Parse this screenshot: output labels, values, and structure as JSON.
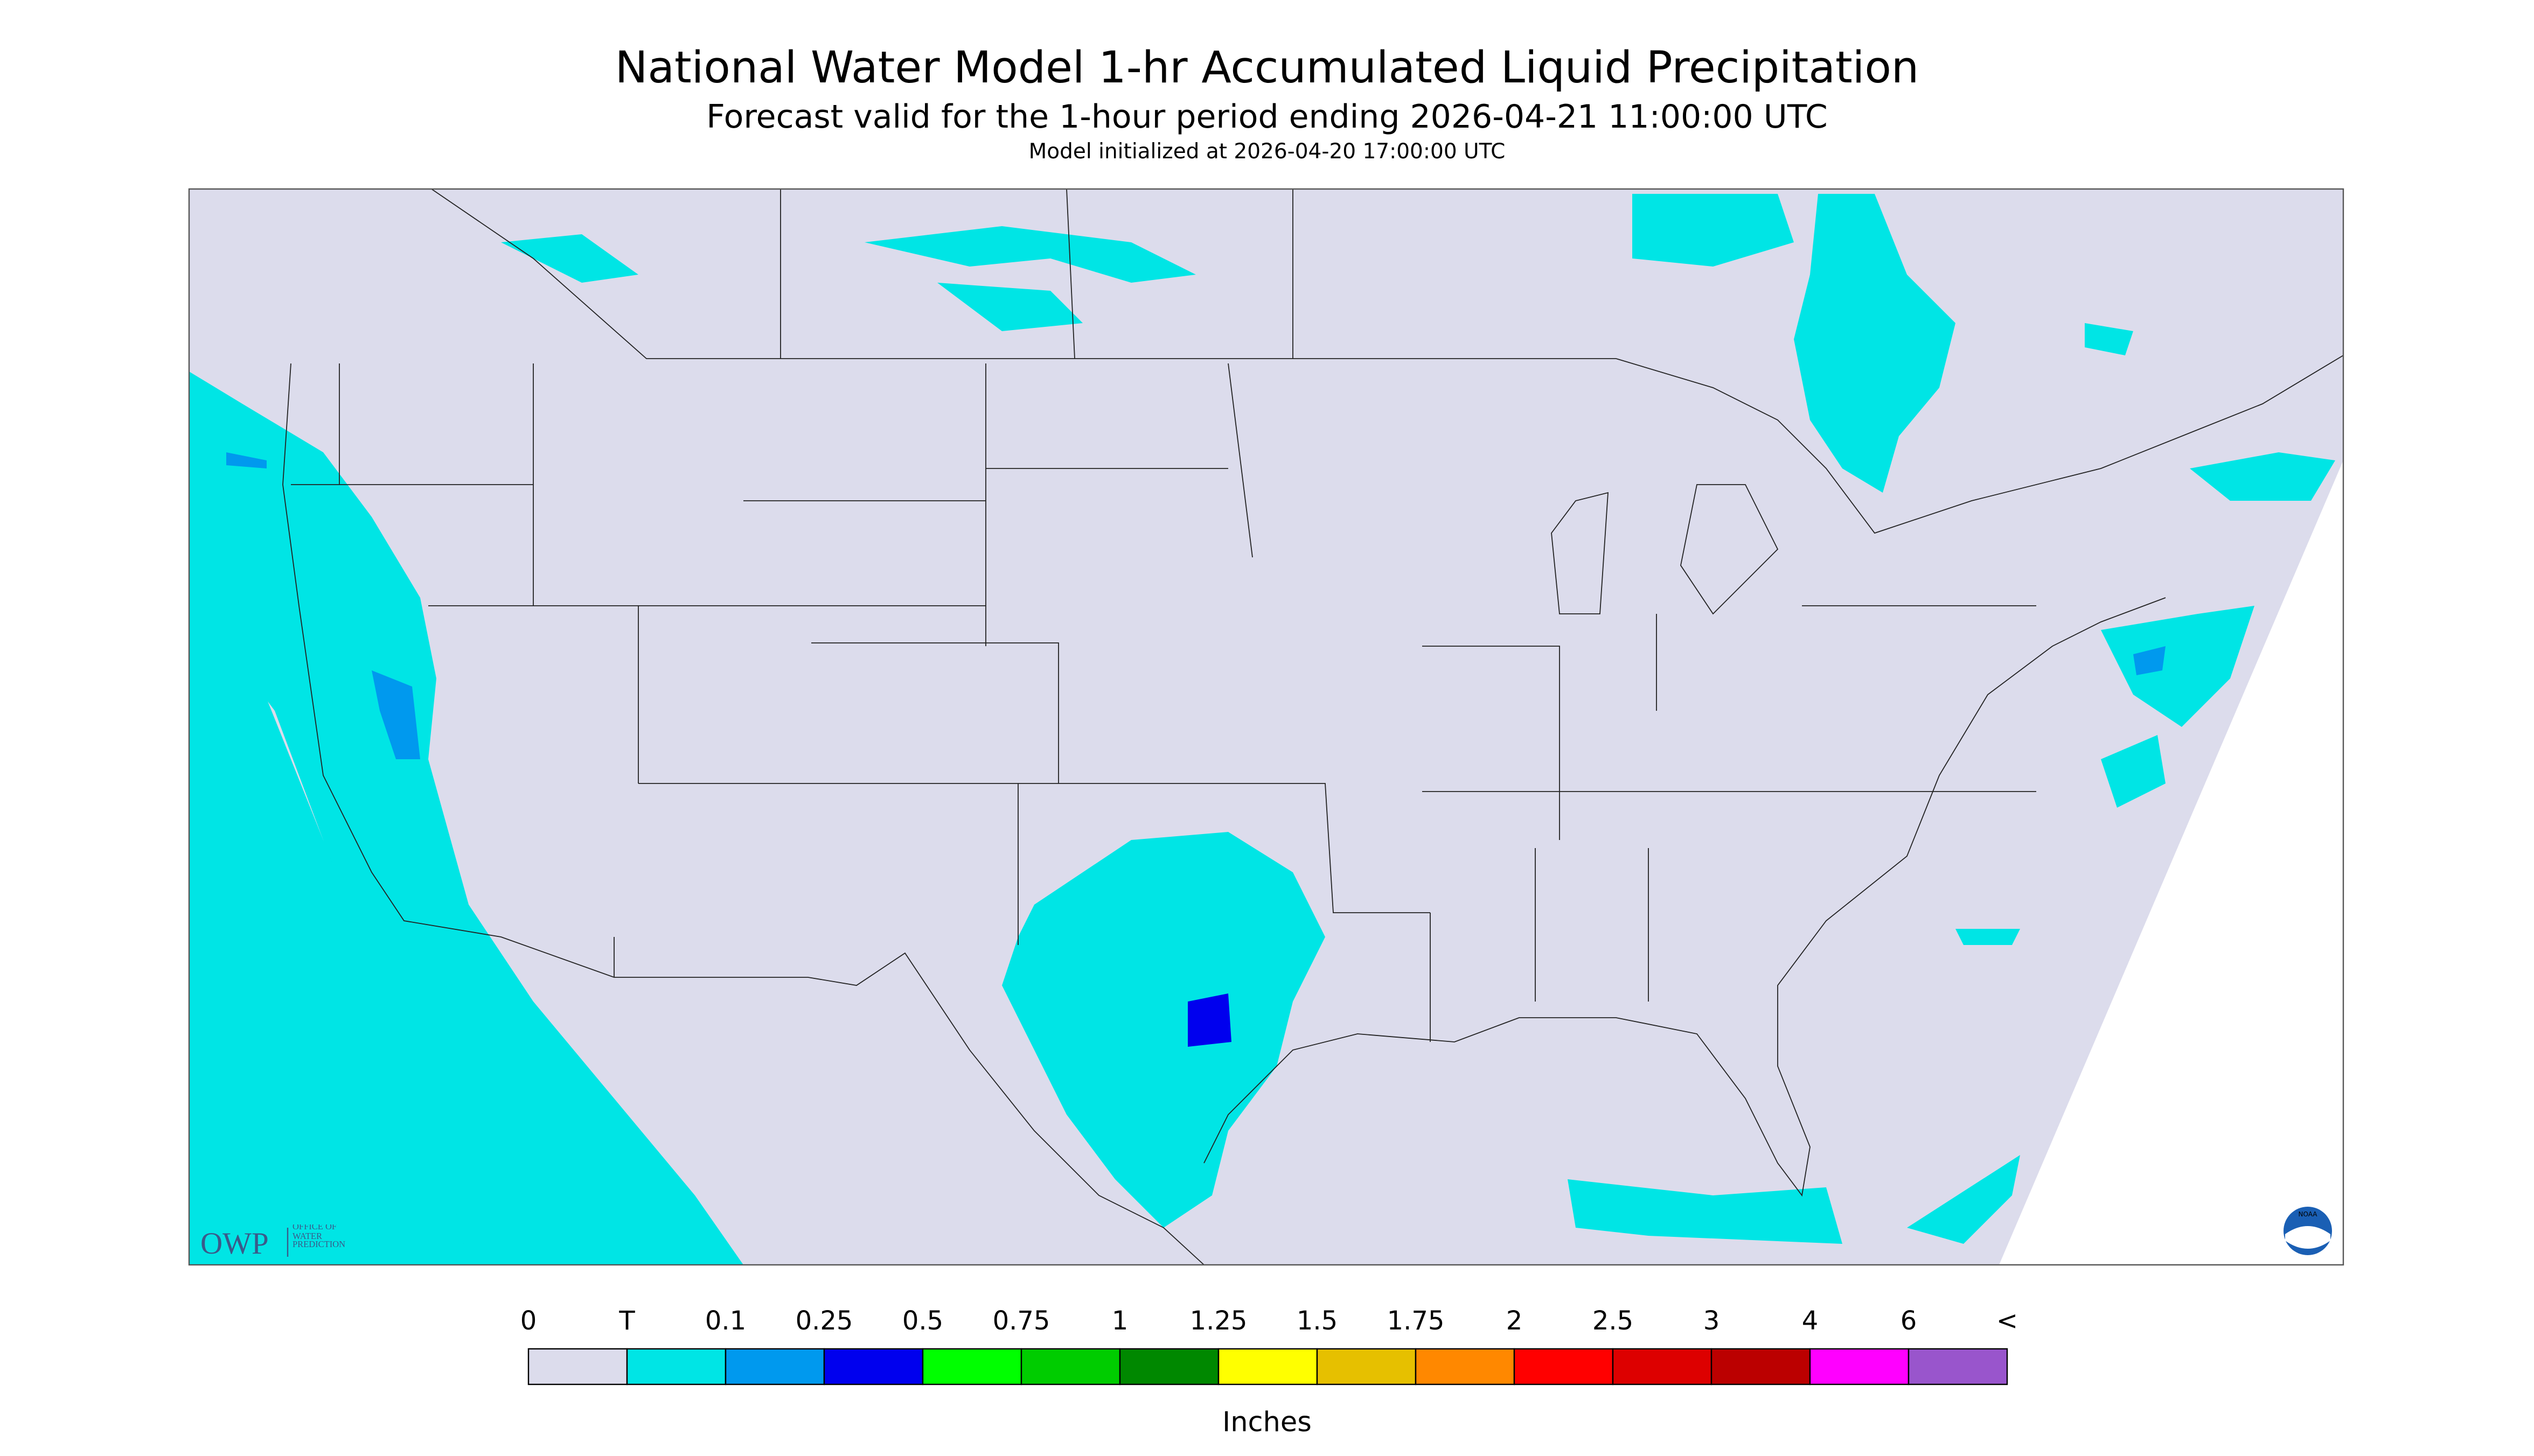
{
  "header": {
    "title": "National Water Model 1-hr Accumulated Liquid Precipitation",
    "subtitle": "Forecast valid for the 1-hour period ending 2026-04-21 11:00:00 UTC",
    "init": "Model initialized at 2026-04-20 17:00:00 UTC"
  },
  "legend": {
    "labels": [
      "0",
      "T",
      "0.1",
      "0.25",
      "0.5",
      "0.75",
      "1",
      "1.25",
      "1.5",
      "1.75",
      "2",
      "2.5",
      "3",
      "4",
      "6",
      "<"
    ],
    "colors": [
      "#dcdcec",
      "#00e5e5",
      "#0099ee",
      "#0000ee",
      "#00ff00",
      "#00cc00",
      "#008800",
      "#ffff00",
      "#e6c000",
      "#ff8800",
      "#ff0000",
      "#dd0000",
      "#bb0000",
      "#ff00ff",
      "#9955cc"
    ],
    "unit": "Inches"
  },
  "logos": {
    "owp": "OWP",
    "owp_text": "OFFICE OF WATER PREDICTION",
    "noaa": "NOAA"
  }
}
